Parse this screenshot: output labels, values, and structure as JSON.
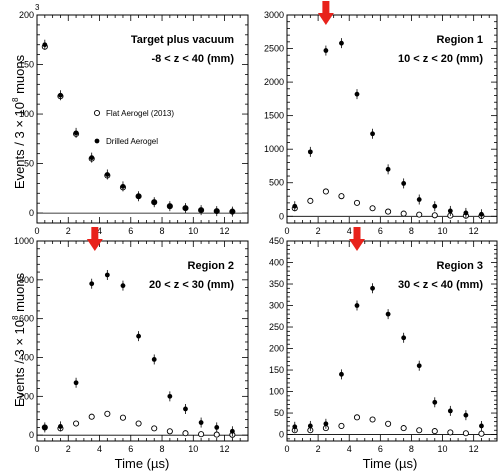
{
  "figure": {
    "ylabel_prefix": "Events / 3 × 10",
    "ylabel_exp": "8",
    "ylabel_suffix": " muons",
    "xlabel_left": "Time (µs)",
    "xlabel_right": "Time (µs)"
  },
  "chart_data": [
    {
      "type": "scatter",
      "title": "Target plus vacuum",
      "subtitle": "-8 < z < 40 (mm)",
      "xlabel": "Time (µs)",
      "ylabel": "Events / 3 × 10^8 muons",
      "xlim": [
        0,
        13.5
      ],
      "ylim": [
        -10,
        200
      ],
      "x_ticks": [
        0,
        2,
        4,
        6,
        8,
        10,
        12
      ],
      "y_ticks": [
        0,
        50,
        100,
        150,
        200
      ],
      "y_multiplier": "10^3",
      "y_multiplier_exp": "3",
      "legend": {
        "placement": "center",
        "open_label": "Flat Aerogel (2013)",
        "filled_label": "Drilled Aerogel"
      },
      "arrow_x": null,
      "series": [
        {
          "name": "Flat Aerogel (2013)",
          "marker": "open",
          "x": [
            0.5,
            1.5,
            2.5,
            3.5,
            4.5,
            5.5,
            6.5,
            7.5,
            8.5,
            9.5,
            10.5,
            11.5,
            12.5
          ],
          "y": [
            168,
            118,
            80,
            55,
            38,
            26,
            17,
            11,
            7,
            5,
            3,
            2,
            1.5
          ]
        },
        {
          "name": "Drilled Aerogel",
          "marker": "filled",
          "x": [
            0.5,
            1.5,
            2.5,
            3.5,
            4.5,
            5.5,
            6.5,
            7.5,
            8.5,
            9.5,
            10.5,
            11.5,
            12.5
          ],
          "y": [
            170,
            119,
            81,
            56,
            39,
            27,
            17,
            11,
            7,
            5,
            3,
            2,
            1.5
          ]
        }
      ]
    },
    {
      "type": "scatter",
      "title": "Region 1",
      "subtitle": "10 < z < 20 (mm)",
      "xlabel": "Time (µs)",
      "ylabel": "Events / 3 × 10^8 muons",
      "xlim": [
        0,
        13.5
      ],
      "ylim": [
        -100,
        3000
      ],
      "x_ticks": [
        0,
        2,
        4,
        6,
        8,
        10,
        12
      ],
      "y_ticks": [
        0,
        500,
        1000,
        1500,
        2000,
        2500,
        3000
      ],
      "arrow_x": 2.5,
      "series": [
        {
          "name": "Flat Aerogel (2013)",
          "marker": "open",
          "x": [
            0.5,
            1.5,
            2.5,
            3.5,
            4.5,
            5.5,
            6.5,
            7.5,
            8.5,
            9.5,
            10.5,
            11.5,
            12.5
          ],
          "y": [
            120,
            230,
            370,
            300,
            200,
            120,
            70,
            40,
            25,
            15,
            10,
            8,
            5
          ]
        },
        {
          "name": "Drilled Aerogel",
          "marker": "filled",
          "x": [
            0.5,
            1.5,
            2.5,
            3.5,
            4.5,
            5.5,
            6.5,
            7.5,
            8.5,
            9.5,
            10.5,
            11.5,
            12.5
          ],
          "y": [
            150,
            960,
            2470,
            2580,
            1820,
            1230,
            700,
            490,
            250,
            150,
            80,
            50,
            30
          ]
        }
      ]
    },
    {
      "type": "scatter",
      "title": "Region 2",
      "subtitle": "20 < z < 30 (mm)",
      "xlabel": "Time (µs)",
      "ylabel": "Events / 3 × 10^8 muons",
      "xlim": [
        0,
        13.5
      ],
      "ylim": [
        -30,
        1000
      ],
      "x_ticks": [
        0,
        2,
        4,
        6,
        8,
        10,
        12
      ],
      "y_ticks": [
        0,
        200,
        400,
        600,
        800,
        1000
      ],
      "arrow_x": 3.7,
      "series": [
        {
          "name": "Flat Aerogel (2013)",
          "marker": "open",
          "x": [
            0.5,
            1.5,
            2.5,
            3.5,
            4.5,
            5.5,
            6.5,
            7.5,
            8.5,
            9.5,
            10.5,
            11.5,
            12.5
          ],
          "y": [
            40,
            35,
            60,
            95,
            110,
            90,
            60,
            35,
            20,
            10,
            5,
            3,
            2
          ]
        },
        {
          "name": "Drilled Aerogel",
          "marker": "filled",
          "x": [
            0.5,
            1.5,
            2.5,
            3.5,
            4.5,
            5.5,
            6.5,
            7.5,
            8.5,
            9.5,
            10.5,
            11.5,
            12.5
          ],
          "y": [
            40,
            45,
            270,
            780,
            825,
            770,
            510,
            390,
            200,
            135,
            65,
            40,
            20
          ]
        }
      ]
    },
    {
      "type": "scatter",
      "title": "Region 3",
      "subtitle": "30 < z < 40 (mm)",
      "xlabel": "Time (µs)",
      "ylabel": "Events / 3 × 10^8 muons",
      "xlim": [
        0,
        13.5
      ],
      "ylim": [
        -15,
        450
      ],
      "x_ticks": [
        0,
        2,
        4,
        6,
        8,
        10,
        12
      ],
      "y_ticks": [
        0,
        50,
        100,
        150,
        200,
        250,
        300,
        350,
        400,
        450
      ],
      "arrow_x": 4.5,
      "series": [
        {
          "name": "Flat Aerogel (2013)",
          "marker": "open",
          "x": [
            0.5,
            1.5,
            2.5,
            3.5,
            4.5,
            5.5,
            6.5,
            7.5,
            8.5,
            9.5,
            10.5,
            11.5,
            12.5
          ],
          "y": [
            10,
            10,
            15,
            20,
            40,
            35,
            25,
            15,
            10,
            8,
            5,
            3,
            2
          ]
        },
        {
          "name": "Drilled Aerogel",
          "marker": "filled",
          "x": [
            0.5,
            1.5,
            2.5,
            3.5,
            4.5,
            5.5,
            6.5,
            7.5,
            8.5,
            9.5,
            10.5,
            11.5,
            12.5
          ],
          "y": [
            18,
            20,
            25,
            140,
            300,
            340,
            280,
            225,
            160,
            75,
            55,
            45,
            20
          ]
        }
      ]
    }
  ]
}
